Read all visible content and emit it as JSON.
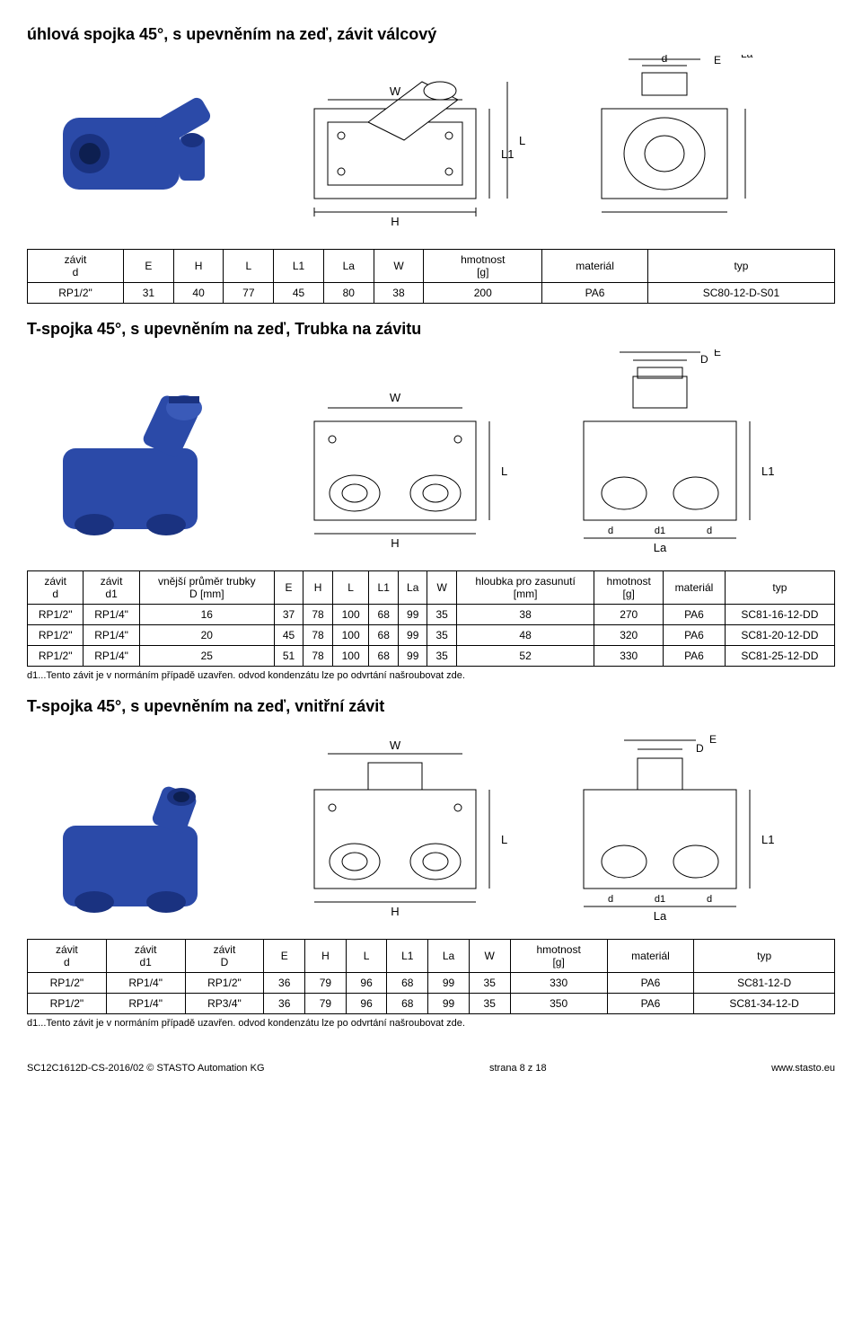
{
  "section1": {
    "title": "úhlová spojka 45°, s upevněním na zeď, závit válcový",
    "table": {
      "headers": [
        "závit\nd",
        "E",
        "H",
        "L",
        "L1",
        "La",
        "W",
        "hmotnost\n[g]",
        "materiál",
        "typ"
      ],
      "rows": [
        [
          "RP1/2\"",
          "31",
          "40",
          "77",
          "45",
          "80",
          "38",
          "200",
          "PA6",
          "SC80-12-D-S01"
        ]
      ]
    }
  },
  "section2": {
    "title": "T-spojka 45°, s upevněním na zeď, Trubka na závitu",
    "table": {
      "headers": [
        "závit\nd",
        "závit\nd1",
        "vnější průměr trubky\nD [mm]",
        "E",
        "H",
        "L",
        "L1",
        "La",
        "W",
        "hloubka pro zasunutí\n[mm]",
        "hmotnost\n[g]",
        "materiál",
        "typ"
      ],
      "rows": [
        [
          "RP1/2\"",
          "RP1/4\"",
          "16",
          "37",
          "78",
          "100",
          "68",
          "99",
          "35",
          "38",
          "270",
          "PA6",
          "SC81-16-12-DD"
        ],
        [
          "RP1/2\"",
          "RP1/4\"",
          "20",
          "45",
          "78",
          "100",
          "68",
          "99",
          "35",
          "48",
          "320",
          "PA6",
          "SC81-20-12-DD"
        ],
        [
          "RP1/2\"",
          "RP1/4\"",
          "25",
          "51",
          "78",
          "100",
          "68",
          "99",
          "35",
          "52",
          "330",
          "PA6",
          "SC81-25-12-DD"
        ]
      ]
    },
    "footnote": "d1...Tento závit je v normáním případě uzavřen. odvod kondenzátu lze po odvrtání našroubovat zde."
  },
  "section3": {
    "title": "T-spojka 45°, s upevněním na zeď, vnitřní závit",
    "table": {
      "headers": [
        "závit\nd",
        "závit\nd1",
        "závit\nD",
        "E",
        "H",
        "L",
        "L1",
        "La",
        "W",
        "hmotnost\n[g]",
        "materiál",
        "typ"
      ],
      "rows": [
        [
          "RP1/2\"",
          "RP1/4\"",
          "RP1/2\"",
          "36",
          "79",
          "96",
          "68",
          "99",
          "35",
          "330",
          "PA6",
          "SC81-12-D"
        ],
        [
          "RP1/2\"",
          "RP1/4\"",
          "RP3/4\"",
          "36",
          "79",
          "96",
          "68",
          "99",
          "35",
          "350",
          "PA6",
          "SC81-34-12-D"
        ]
      ]
    },
    "footnote": "d1...Tento závit je v normáním případě uzavřen. odvod kondenzátu lze po odvrtání našroubovat zde."
  },
  "footer": {
    "left": "SC12C1612D-CS-2016/02 © STASTO Automation KG",
    "center": "strana 8 z 18",
    "right": "www.stasto.eu"
  },
  "diagram_labels": {
    "d1_H": "H",
    "d1_W": "W",
    "d1_La": "La",
    "d1_E": "E",
    "d1_d": "d",
    "d1_L": "L",
    "d1_L1": "L1",
    "d2_H": "H",
    "d2_W": "W",
    "d2_L": "L",
    "d2_La": "La",
    "d2_E": "E",
    "d2_D": "D",
    "d2_d": "d",
    "d2_d1": "d1",
    "d2_L1": "L1",
    "d3_H": "H",
    "d3_W": "W",
    "d3_L": "L",
    "d3_La": "La",
    "d3_E": "E",
    "d3_D": "D",
    "d3_d": "d",
    "d3_d1": "d1",
    "d3_L1": "L1"
  },
  "colors": {
    "stroke": "#000000",
    "fill": "#ffffff",
    "hatch": "#cccccc",
    "product_blue": "#2b4aa8"
  }
}
